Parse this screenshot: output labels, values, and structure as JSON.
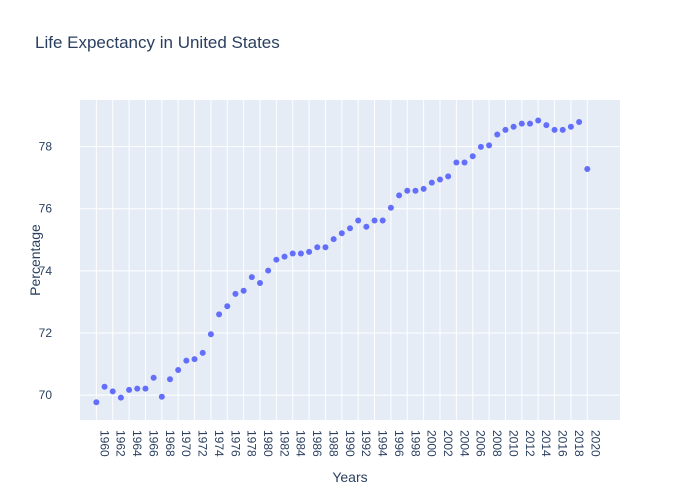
{
  "chart_data": {
    "type": "scatter",
    "title": "Life Expectancy in United States",
    "xlabel": "Years",
    "ylabel": "Percentage",
    "xlim": [
      1958,
      2024
    ],
    "ylim": [
      69.2,
      79.5
    ],
    "x_ticks": [
      1960,
      1962,
      1964,
      1966,
      1968,
      1970,
      1972,
      1974,
      1976,
      1978,
      1980,
      1982,
      1984,
      1986,
      1988,
      1990,
      1992,
      1994,
      1996,
      1998,
      2000,
      2002,
      2004,
      2006,
      2008,
      2010,
      2012,
      2014,
      2016,
      2018,
      2020
    ],
    "y_ticks": [
      70,
      72,
      74,
      76,
      78
    ],
    "grid": true,
    "marker_color": "#636efa",
    "plot_bg": "#e5ecf6",
    "x": [
      1960,
      1961,
      1962,
      1963,
      1964,
      1965,
      1966,
      1967,
      1968,
      1969,
      1970,
      1971,
      1972,
      1973,
      1974,
      1975,
      1976,
      1977,
      1978,
      1979,
      1980,
      1981,
      1982,
      1983,
      1984,
      1985,
      1986,
      1987,
      1988,
      1989,
      1990,
      1991,
      1992,
      1993,
      1994,
      1995,
      1996,
      1997,
      1998,
      1999,
      2000,
      2001,
      2002,
      2003,
      2004,
      2005,
      2006,
      2007,
      2008,
      2009,
      2010,
      2011,
      2012,
      2013,
      2014,
      2015,
      2016,
      2017,
      2018,
      2019,
      2020
    ],
    "y": [
      69.77,
      70.27,
      70.12,
      69.92,
      70.17,
      70.21,
      70.21,
      70.56,
      69.95,
      70.51,
      70.81,
      71.11,
      71.16,
      71.36,
      71.96,
      72.6,
      72.86,
      73.26,
      73.36,
      73.8,
      73.61,
      74.01,
      74.36,
      74.46,
      74.56,
      74.56,
      74.61,
      74.76,
      74.76,
      75.02,
      75.21,
      75.37,
      75.62,
      75.42,
      75.62,
      75.62,
      76.03,
      76.43,
      76.58,
      76.58,
      76.64,
      76.84,
      76.94,
      77.04,
      77.49,
      77.49,
      77.69,
      77.99,
      78.04,
      78.39,
      78.54,
      78.64,
      78.74,
      78.74,
      78.84,
      78.69,
      78.54,
      78.54,
      78.64,
      78.79,
      77.28
    ]
  }
}
